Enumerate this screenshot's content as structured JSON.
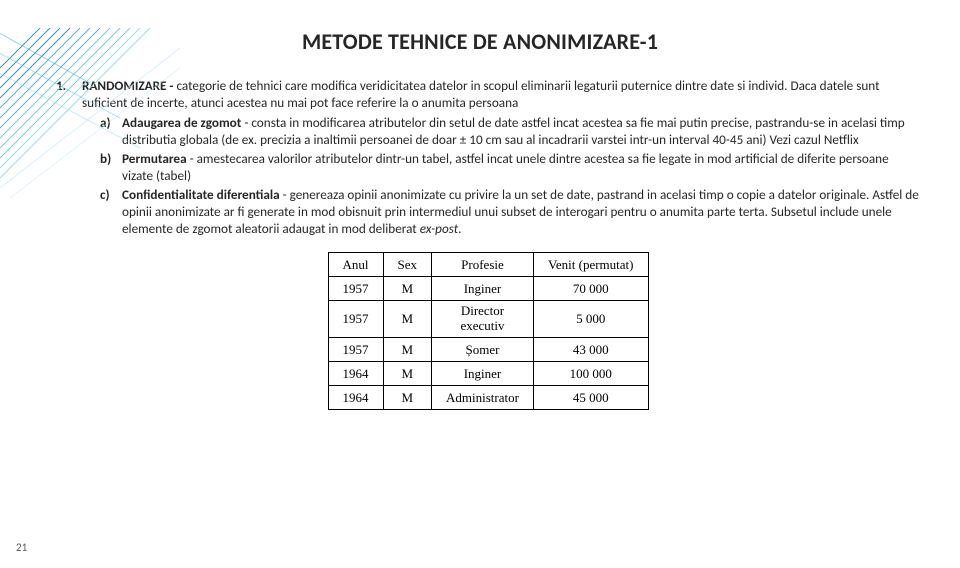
{
  "title": "METODE TEHNICE DE ANONIMIZARE-1",
  "page_number": "21",
  "decoration": {
    "stroke_colors": [
      "#8fd6f0",
      "#6ec1e4",
      "#4aa8d8",
      "#2a86b8"
    ],
    "background": "#ffffff"
  },
  "item": {
    "marker": "1.",
    "lead": "RANDOMIZARE -",
    "body": " categorie de tehnici care modifica veridicitatea datelor in scopul eliminarii legaturii puternice dintre date si individ. Daca datele sunt suficient de incerte, atunci acestea nu mai pot face referire la o anumita persoana",
    "subs": [
      {
        "marker": "a)",
        "lead": "Adaugarea de zgomot",
        "body": " - consta in modificarea atributelor din setul de date astfel incat acestea sa fie mai putin precise, pastrandu-se in acelasi timp distributia globala (de ex. precizia a inaltimii persoanei de doar ± 10 cm sau al incadrarii varstei intr-un interval 40-45 ani) Vezi cazul Netflix"
      },
      {
        "marker": "b)",
        "lead": "Permutarea",
        "body": " - amestecarea valorilor atributelor dintr-un tabel, astfel incat unele dintre acestea sa fie legate in mod artificial de diferite persoane vizate (tabel)"
      },
      {
        "marker": "c)",
        "lead": "Confidentialitate diferentiala",
        "body_pre": " - genereaza opinii anonimizate cu privire la un set de date, pastrand in acelasi timp o copie a datelor originale. Astfel de opinii anonimizate ar fi generate in mod obisnuit prin intermediul unui subset de interogari pentru o anumita parte terta. Subsetul include unele elemente de zgomot aleatorii adaugat in mod deliberat ",
        "body_em": "ex-post",
        "body_post": "."
      }
    ]
  },
  "table": {
    "columns": [
      "Anul",
      "Sex",
      "Profesie",
      "Venit (permutat)"
    ],
    "rows": [
      [
        "1957",
        "M",
        "Inginer",
        "70 000"
      ],
      [
        "1957",
        "M",
        "Director executiv",
        "5 000"
      ],
      [
        "1957",
        "M",
        "Șomer",
        "43 000"
      ],
      [
        "1964",
        "M",
        "Inginer",
        "100 000"
      ],
      [
        "1964",
        "M",
        "Administrator",
        "45 000"
      ]
    ],
    "border_color": "#000000",
    "font_family": "Times New Roman"
  }
}
